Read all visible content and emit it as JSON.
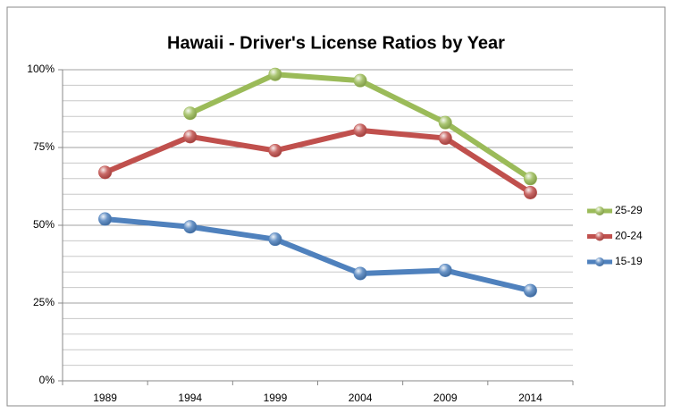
{
  "chart_data": {
    "type": "line",
    "title": "Hawaii - Driver's License Ratios by Year",
    "categories": [
      "1989",
      "1994",
      "1999",
      "2004",
      "2009",
      "2014"
    ],
    "series": [
      {
        "name": "25-29",
        "color": "#9bbb59",
        "values": [
          null,
          86,
          98.5,
          96.5,
          83,
          65
        ]
      },
      {
        "name": "20-24",
        "color": "#c0504d",
        "values": [
          67,
          78.5,
          74,
          80.5,
          78,
          60.5
        ]
      },
      {
        "name": "15-19",
        "color": "#4f81bd",
        "values": [
          52,
          49.5,
          45.5,
          34.5,
          35.5,
          29
        ]
      }
    ],
    "ylim": [
      0,
      100
    ],
    "yticks": [
      {
        "value": 0,
        "label": "0%"
      },
      {
        "value": 25,
        "label": "25%"
      },
      {
        "value": 50,
        "label": "50%"
      },
      {
        "value": 75,
        "label": "75%"
      },
      {
        "value": 100,
        "label": "100%"
      }
    ],
    "minor_yticks": [
      5,
      10,
      15,
      20,
      30,
      35,
      40,
      45,
      55,
      60,
      65,
      70,
      80,
      85,
      90,
      95
    ],
    "grid": true,
    "legend": "right"
  }
}
